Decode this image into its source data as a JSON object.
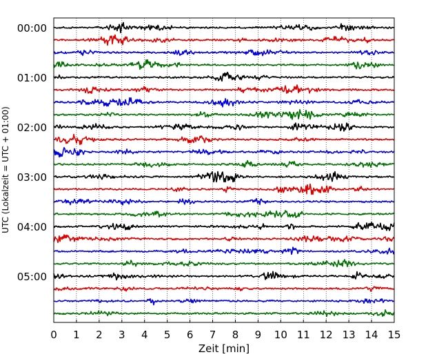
{
  "chart_data": {
    "type": "line",
    "xlabel": "Zeit  [min]",
    "ylabel": "UTC (Lokalzeit = UTC + 01:00)",
    "xlim": [
      0,
      15
    ],
    "x_ticks": [
      "0",
      "1",
      "2",
      "3",
      "4",
      "5",
      "6",
      "7",
      "8",
      "9",
      "10",
      "11",
      "12",
      "13",
      "14",
      "15"
    ],
    "y_ticks": [
      "00:00",
      "01:00",
      "02:00",
      "03:00",
      "04:00",
      "05:00"
    ],
    "grid": "vertical dotted",
    "trace_count": 24,
    "trace_minutes_per_line": 15,
    "trace_colors": [
      "#000000",
      "#e00000",
      "#0000e0",
      "#007000"
    ]
  }
}
